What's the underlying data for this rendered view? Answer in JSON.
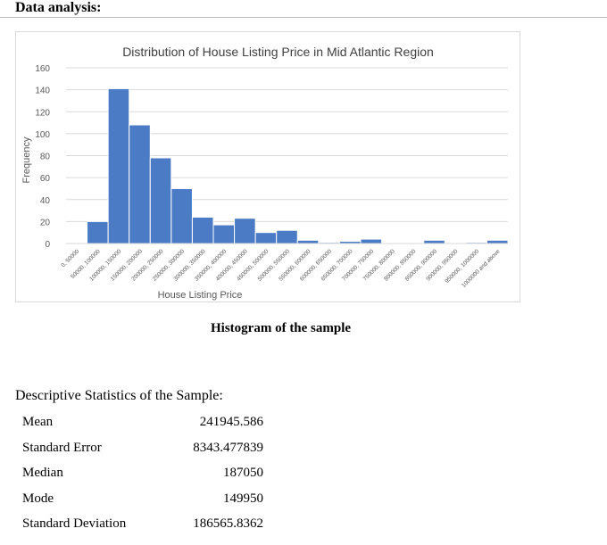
{
  "heading": "Data analysis:",
  "caption": "Histogram of the sample",
  "chart_data": {
    "type": "bar",
    "title": "Distribution of House Listing Price in Mid Atlantic Region",
    "xlabel": "House Listing Price",
    "ylabel": "Frequency",
    "ylim": [
      0,
      160
    ],
    "yticks": [
      0,
      20,
      40,
      60,
      80,
      100,
      120,
      140,
      160
    ],
    "grid": true,
    "bar_color": "#4a7bc4",
    "categories": [
      "0, 50000",
      "50000, 100000",
      "100000, 150000",
      "150000, 200000",
      "200000, 250000",
      "250000, 300000",
      "300000, 350000",
      "350000, 400000",
      "400000, 450000",
      "450000, 500000",
      "500000, 550000",
      "550000, 600000",
      "600000, 650000",
      "650000, 700000",
      "700000, 750000",
      "750000, 800000",
      "800000, 850000",
      "850000, 900000",
      "900000, 950000",
      "950000, 1000000",
      "1000000 and above"
    ],
    "values": [
      0,
      20,
      141,
      108,
      78,
      50,
      24,
      17,
      23,
      10,
      12,
      3,
      1,
      2,
      4,
      0,
      0,
      3,
      0,
      1,
      3
    ]
  },
  "stats": {
    "title": "Descriptive Statistics of the Sample:",
    "rows": [
      {
        "label": "Mean",
        "value": "241945.586"
      },
      {
        "label": "Standard Error",
        "value": "8343.477839"
      },
      {
        "label": "Median",
        "value": "187050"
      },
      {
        "label": "Mode",
        "value": "149950"
      },
      {
        "label": "Standard Deviation",
        "value": "186565.8362"
      }
    ]
  }
}
